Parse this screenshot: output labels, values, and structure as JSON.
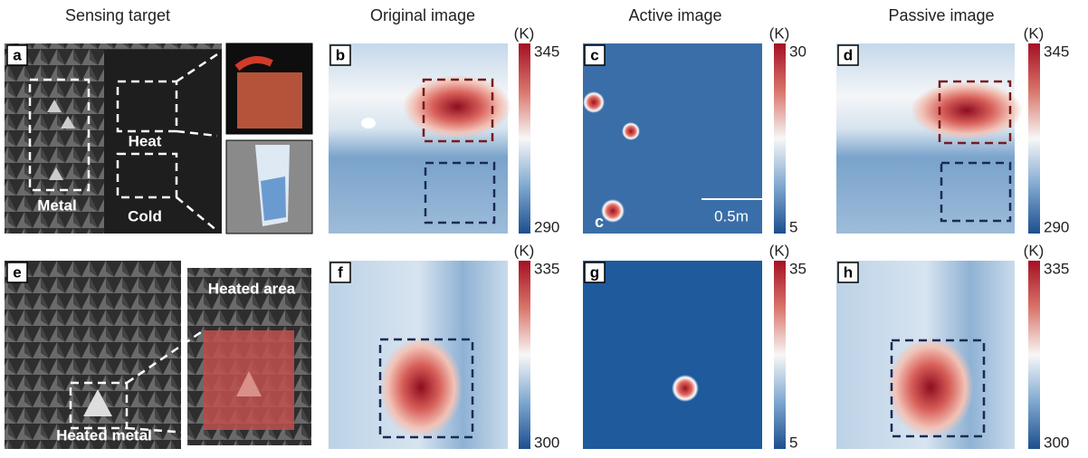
{
  "headers": [
    "Sensing target",
    "Original image",
    "Active image",
    "Passive image"
  ],
  "panel_letters": [
    "a",
    "b",
    "c",
    "d",
    "e",
    "f",
    "g",
    "h"
  ],
  "photo_labels": {
    "metal": "Metal",
    "heat": "Heat",
    "cold": "Cold",
    "heated_area": "Heated area",
    "heated_metal": "Heated metal"
  },
  "scale_bar": "0.5m",
  "image_mark": "c",
  "colorbars": [
    {
      "unit": "(K)",
      "max": 345,
      "min": 290
    },
    {
      "unit": "(K)",
      "max": 30,
      "min": 5
    },
    {
      "unit": "(K)",
      "max": 345,
      "min": 290
    },
    {
      "unit": "(K)",
      "max": 335,
      "min": 300
    },
    {
      "unit": "(K)",
      "max": 35,
      "min": 5
    },
    {
      "unit": "(K)",
      "max": 335,
      "min": 300
    }
  ]
}
